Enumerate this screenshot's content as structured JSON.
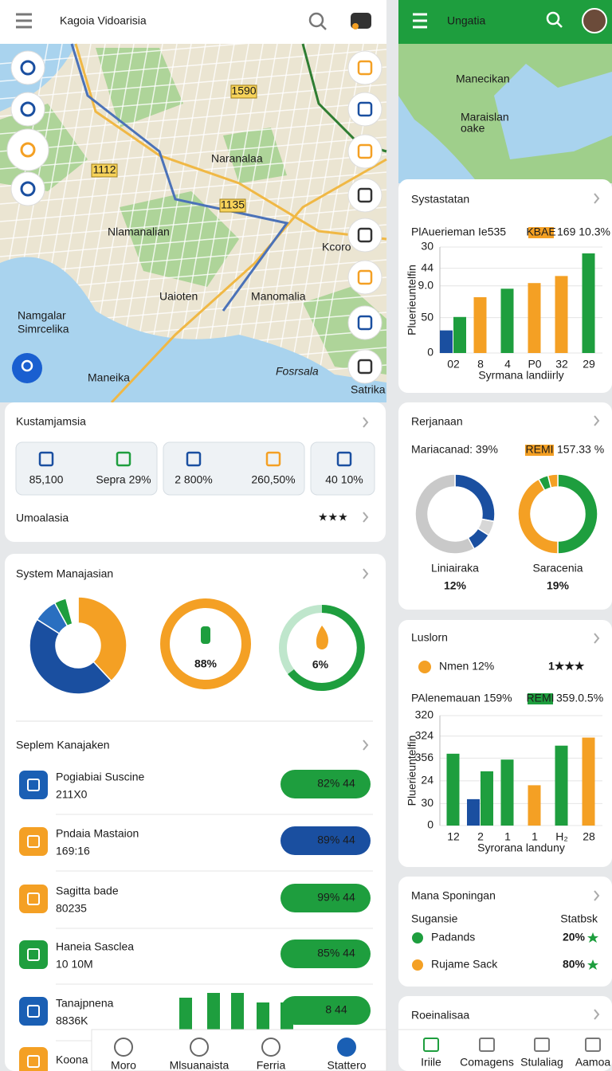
{
  "left_header": {
    "title": "Kagoia Vidoarisia"
  },
  "left_map": {
    "labels": [
      "Naranalaa",
      "Nlamanalian",
      "Kcoro",
      "Uaioten",
      "Manomalia",
      "Namgalar",
      "Simrcelika",
      "Maneika",
      "Fosrsala",
      "Satrika"
    ],
    "road_tags": [
      "1590",
      "1112",
      "1135"
    ]
  },
  "summary_card": {
    "title": "Kustamjamsia",
    "tiles": [
      "85,100",
      "Sepra 29%",
      "2 800%",
      "260,50%",
      "40 10%"
    ],
    "subtitle": "Umoalasia",
    "rating": "★★★"
  },
  "system_card": {
    "title": "System Manajasian",
    "donut": {
      "type": "pie",
      "values": [
        38,
        46,
        8,
        4,
        4
      ],
      "colors": [
        "#f4a024",
        "#1a4fa0",
        "#2a6fc0",
        "#1e9e3e",
        "#ffffff"
      ]
    },
    "rings": [
      {
        "label": "88%",
        "color": "#f4a024"
      },
      {
        "label": "6%",
        "color": "#1e9e3e"
      }
    ]
  },
  "list_card": {
    "title": "Seplem Kanajaken",
    "items": [
      {
        "name": "Pogiabiai Suscine",
        "detail": "211X0",
        "badge": "82% 44",
        "color": "#1a5fb4",
        "badge_color": "#1e9e3e"
      },
      {
        "name": "Pndaia Mastaion",
        "detail": "169:16",
        "badge": "89% 44",
        "color": "#f4a024",
        "badge_color": "#1a4fa0"
      },
      {
        "name": "Sagitta bade",
        "detail": "80235",
        "badge": "99% 44",
        "color": "#f4a024",
        "badge_color": "#1e9e3e"
      },
      {
        "name": "Haneia Sasclea",
        "detail": "10 10M",
        "badge": "85% 44",
        "color": "#1e9e3e",
        "badge_color": "#1e9e3e"
      },
      {
        "name": "Tanajpnena",
        "detail": "8836K",
        "badge": "8 44",
        "color": "#1a5fb4",
        "badge_color": "#1e9e3e"
      },
      {
        "name": "Koona",
        "color": "#f4a024"
      }
    ]
  },
  "left_nav": [
    "Moro",
    "Mlsuanaista",
    "Ferria",
    "Stattero"
  ],
  "right_header": {
    "title": "Ungatia"
  },
  "right_map": {
    "labels": [
      "Manecikan",
      "Maraislan",
      "oake"
    ]
  },
  "bar_card_1": {
    "title": "Systastatan",
    "legend_text": "PlAuerieman Ie535",
    "badge": "KBAE",
    "badge_value": "169 10.3%",
    "chart": {
      "type": "bar",
      "categories": [
        "02",
        "8",
        "4",
        "P0",
        "32",
        "29"
      ],
      "series": [
        {
          "color": "#1a4fa0",
          "values": [
            32,
            null,
            null,
            null,
            null,
            null
          ]
        },
        {
          "color": "#1e9e3e",
          "values": [
            51,
            null,
            91,
            null,
            null,
            141
          ]
        },
        {
          "color": "#f4a024",
          "values": [
            null,
            79,
            null,
            99,
            109,
            null
          ]
        }
      ],
      "ylim": [
        0,
        150
      ],
      "yticks": [
        0,
        50,
        {
          "value": 95,
          "label": "9.0"
        },
        {
          "value": 120,
          "label": "44"
        },
        {
          "value": 150,
          "label": "30"
        }
      ],
      "x_label": "Syrmana landiirly",
      "y_label": "Pluerieuntelfin",
      "grid": true
    }
  },
  "donut_card": {
    "title": "Rerjanaan",
    "legend_text": "Mariacanad: 39%",
    "badge": "REMI",
    "badge_value": "157.33 %",
    "donuts": [
      {
        "type": "pie",
        "name": "Liniairaka",
        "label": "12%",
        "values": [
          28,
          6,
          8,
          58
        ],
        "colors": [
          "#1a4fa0",
          "#d7d7d7",
          "#1a4fa0",
          "#c9c9c9"
        ]
      },
      {
        "type": "pie",
        "name": "Saracenia",
        "label": "19%",
        "values": [
          50,
          42,
          4,
          4
        ],
        "colors": [
          "#1e9e3e",
          "#f4a024",
          "#1e9e3e",
          "#f4a024"
        ]
      }
    ]
  },
  "bar_card_2": {
    "title": "Luslorn",
    "highlight": "Nmen 12%",
    "rating": "1★★★",
    "legend_text": "PAlenemauan 159%",
    "badge": "REMI",
    "badge_value": "359.0.5%",
    "chart": {
      "type": "bar",
      "categories": [
        "12",
        "2",
        "1",
        "1",
        "H₂",
        "28"
      ],
      "series": [
        {
          "color": "#1a4fa0",
          "values": [
            null,
            36,
            null,
            null,
            null,
            null
          ]
        },
        {
          "color": "#1e9e3e",
          "values": [
            98,
            74,
            90,
            null,
            109,
            null
          ]
        },
        {
          "color": "#f4a024",
          "values": [
            null,
            null,
            null,
            55,
            null,
            120
          ]
        }
      ],
      "ylim": [
        0,
        150
      ],
      "yticks": [
        0,
        30,
        {
          "value": 61,
          "label": "24"
        },
        {
          "value": 92,
          "label": "356"
        },
        {
          "value": 122,
          "label": "324"
        },
        {
          "value": 150,
          "label": "320"
        }
      ],
      "x_label": "Syrorana landuny",
      "y_label": "Pluerieuntelfin",
      "grid": true
    }
  },
  "ranking_card": {
    "title": "Mana Sponingan",
    "col1": "Sugansie",
    "col2": "Statbsk",
    "rows": [
      {
        "name": "Padands",
        "value": "20%",
        "color": "#1e9e3e"
      },
      {
        "name": "Rujame Sack",
        "value": "80%",
        "color": "#f4a024"
      }
    ]
  },
  "footer_card": {
    "title": "Roeinalisaa"
  },
  "right_nav": [
    "Iriile",
    "Comagens",
    "Stulaliag",
    "Aamoa"
  ]
}
